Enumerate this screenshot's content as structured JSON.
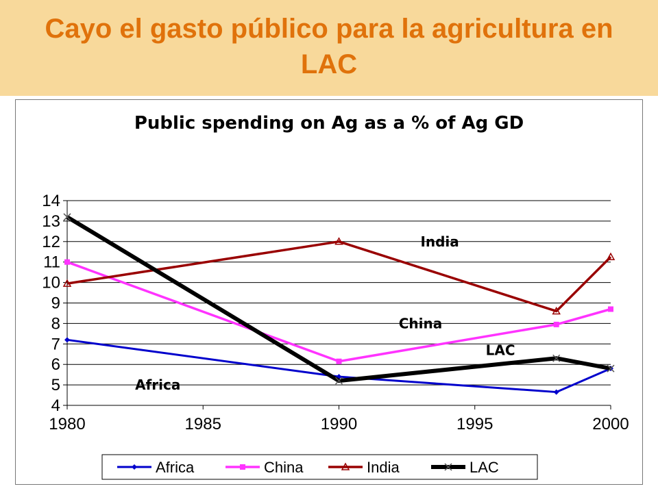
{
  "header": {
    "title_line1": "Cayo el gasto público para la agricultura en",
    "title_line2": "LAC"
  },
  "chart_data": {
    "type": "line",
    "title": "Public spending on Ag as a % of  Ag GD",
    "xlabel": "",
    "ylabel": "",
    "xlim": [
      1980,
      2000
    ],
    "ylim": [
      4,
      14
    ],
    "xticks": [
      1980,
      1985,
      1990,
      1995,
      2000
    ],
    "yticks": [
      4,
      5,
      6,
      7,
      8,
      9,
      10,
      11,
      12,
      13,
      14
    ],
    "grid": "horizontal",
    "legend_position": "bottom",
    "series": [
      {
        "name": "Africa",
        "color": "#0000cc",
        "marker": "diamond",
        "x": [
          1980,
          1990,
          1998,
          2000
        ],
        "y": [
          7.2,
          5.4,
          4.65,
          5.8
        ]
      },
      {
        "name": "China",
        "color": "#ff33ff",
        "marker": "square",
        "x": [
          1980,
          1990,
          1998,
          2000
        ],
        "y": [
          11.0,
          6.15,
          7.95,
          8.7
        ]
      },
      {
        "name": "India",
        "color": "#990000",
        "marker": "triangle",
        "x": [
          1980,
          1990,
          1998,
          2000
        ],
        "y": [
          9.95,
          12.0,
          8.6,
          11.25
        ]
      },
      {
        "name": "LAC",
        "color": "#000000",
        "marker": "x",
        "x": [
          1980,
          1990,
          1998,
          2000
        ],
        "y": [
          13.2,
          5.2,
          6.3,
          5.8
        ]
      }
    ],
    "annotations": [
      {
        "text": "India",
        "x": 1993,
        "y": 12
      },
      {
        "text": "China",
        "x": 1992.2,
        "y": 8
      },
      {
        "text": "LAC",
        "x": 1995.4,
        "y": 6.7
      },
      {
        "text": "Africa",
        "x": 1982.5,
        "y": 5
      }
    ]
  }
}
